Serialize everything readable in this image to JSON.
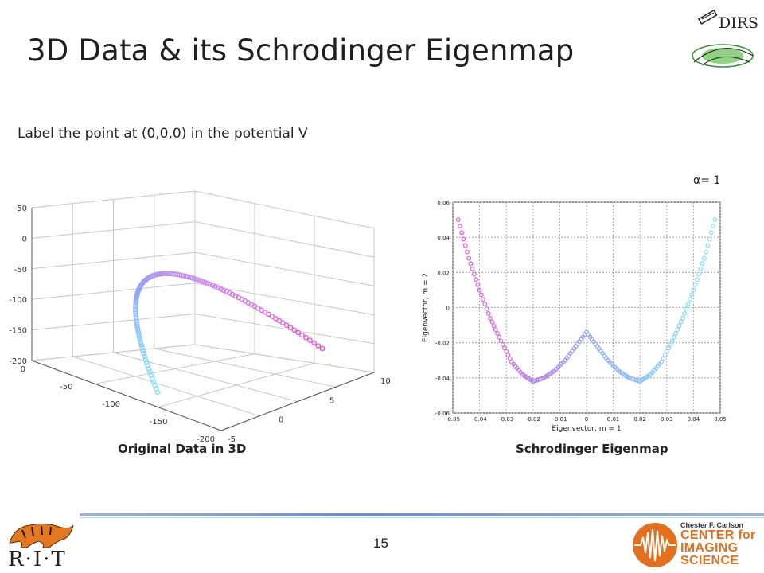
{
  "slide": {
    "title": "3D Data & its Schrodinger Eigenmap",
    "subtitle": "Label the point at (0,0,0) in the potential V",
    "alpha_label": "α= 1",
    "caption_left": "Original Data in 3D",
    "caption_right": "Schrodinger Eigenmap",
    "page_number": "15"
  },
  "logos": {
    "dirs_text": "DIRS",
    "rit_text": "R·I·T",
    "cis_line1": "Chester F. Carlson",
    "cis_line2": "CENTER for",
    "cis_line3": "IMAGING",
    "cis_line4": "SCIENCE",
    "cis_color": "#e2701f"
  },
  "chart_data": [
    {
      "type": "scatter",
      "title": "",
      "projection": "3d",
      "z_ticks": [
        "50",
        "0",
        "-50",
        "-100",
        "-150",
        "-200"
      ],
      "y_ticks": [
        "0",
        "-50",
        "-100",
        "-150",
        "-200"
      ],
      "x_ticks": [
        "-5",
        "0",
        "5",
        "10"
      ],
      "zlim": [
        -200,
        50
      ],
      "ylim": [
        -200,
        0
      ],
      "xlim": [
        -5,
        10
      ],
      "grid": true,
      "colors": [
        "#7fe4ff",
        "#8fa6f5",
        "#c78cf0",
        "#f24bdc"
      ]
    },
    {
      "type": "scatter",
      "title": "",
      "xlabel": "Eigenvector, m = 1",
      "ylabel": "Eigenvector, m = 2",
      "xlim": [
        -0.05,
        0.05
      ],
      "ylim": [
        -0.06,
        0.06
      ],
      "x_ticks": [
        "-0.05",
        "-0.04",
        "-0.03",
        "-0.02",
        "-0.01",
        "0",
        "0.01",
        "0.02",
        "0.03",
        "0.04",
        "0.05"
      ],
      "y_ticks": [
        "0.06",
        "0.04",
        "0.02",
        "0",
        "-0.02",
        "-0.04",
        "-0.06"
      ],
      "grid": true,
      "colors": [
        "#f24bdc",
        "#8fa6f5",
        "#7fe4ff"
      ],
      "x": [
        -0.048,
        -0.044,
        -0.04,
        -0.036,
        -0.032,
        -0.028,
        -0.024,
        -0.02,
        -0.016,
        -0.012,
        -0.008,
        -0.004,
        0.0,
        0.004,
        0.008,
        0.012,
        0.016,
        0.02,
        0.024,
        0.028,
        0.032,
        0.036,
        0.04,
        0.044,
        0.048
      ],
      "y": [
        0.05,
        0.028,
        0.01,
        -0.006,
        -0.019,
        -0.031,
        -0.038,
        -0.042,
        -0.04,
        -0.036,
        -0.03,
        -0.022,
        -0.014,
        -0.022,
        -0.03,
        -0.036,
        -0.04,
        -0.042,
        -0.038,
        -0.031,
        -0.019,
        -0.006,
        0.01,
        0.028,
        0.05
      ]
    }
  ]
}
